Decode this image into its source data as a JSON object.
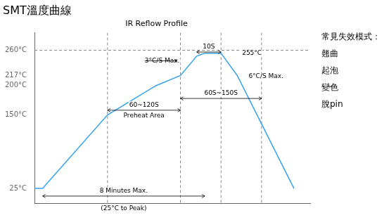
{
  "chart_data": {
    "type": "line",
    "title": "SMT溫度曲線",
    "subtitle": "IR Reflow Profile",
    "x": [
      0,
      0.5,
      4.5,
      7.5,
      9.0,
      10.0,
      10.5,
      11.5,
      12.5,
      16.0
    ],
    "values": [
      25,
      25,
      150,
      200,
      217,
      250,
      255,
      255,
      217,
      25
    ],
    "xlim": [
      0,
      17
    ],
    "ylim": [
      0,
      290
    ],
    "yticks": [
      {
        "value": 25,
        "label": "25°C"
      },
      {
        "value": 150,
        "label": "150°C"
      },
      {
        "value": 200,
        "label": "200°C"
      },
      {
        "value": 217,
        "label": "217°C"
      },
      {
        "value": 260,
        "label": "260°C"
      }
    ],
    "tick_labels": "y",
    "grid": false,
    "hlines": [
      260
    ],
    "vlines": [
      4.5,
      9.0,
      11.5,
      14.0
    ],
    "annotations": [
      {
        "text": "3°C/S Max.",
        "x": 6.8,
        "y": 242,
        "arrow_x": 8.8
      },
      {
        "text": "255°C",
        "x": 12.8,
        "y": 255
      },
      {
        "text": "10S",
        "x1": 10.0,
        "x2": 11.5,
        "y": 257
      },
      {
        "text": "6°C/S Max.",
        "x": 13.2,
        "y": 215
      },
      {
        "text": "60S~150S",
        "x1": 9.0,
        "x2": 14.0,
        "y": 178
      },
      {
        "text": "60~120S",
        "text_below": "Preheat Area",
        "x1": 4.5,
        "x2": 9.0,
        "y": 158
      },
      {
        "text": "8 Minutes Max.",
        "text_below": "(25°C to Peak)",
        "x1": 0.5,
        "x2": 10.5,
        "y": 12
      }
    ],
    "side_text": [
      "常見失效模式：",
      "翹曲",
      "起泡",
      "變色",
      "脫pin"
    ]
  }
}
